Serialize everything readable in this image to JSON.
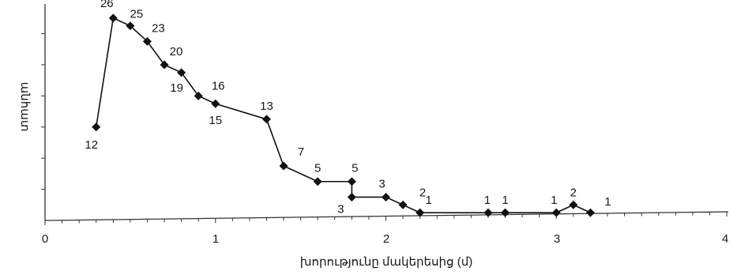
{
  "chart_data": {
    "type": "line",
    "title": "",
    "xlabel": "խորությունը մակերեսից (մ)",
    "ylabel": "անհատ",
    "xlim": [
      0,
      4
    ],
    "ylim": [
      0,
      27
    ],
    "x_ticks": [
      "0",
      "1",
      "2",
      "3",
      "4"
    ],
    "grid": false,
    "legend": "none",
    "colors": {
      "line": "#111111",
      "marker": "#111111",
      "axis": "#333333"
    },
    "marker": "diamond",
    "series": [
      {
        "points": [
          {
            "x": 0.3,
            "y": 12,
            "label": "12"
          },
          {
            "x": 0.4,
            "y": 26,
            "label": "26"
          },
          {
            "x": 0.5,
            "y": 25,
            "label": "25"
          },
          {
            "x": 0.6,
            "y": 23,
            "label": "23"
          },
          {
            "x": 0.7,
            "y": 20,
            "label": "20"
          },
          {
            "x": 0.8,
            "y": 19,
            "label": "19"
          },
          {
            "x": 0.9,
            "y": 16,
            "label": "16"
          },
          {
            "x": 1.0,
            "y": 15,
            "label": "15"
          },
          {
            "x": 1.3,
            "y": 13,
            "label": "13"
          },
          {
            "x": 1.4,
            "y": 7,
            "label": "7"
          },
          {
            "x": 1.6,
            "y": 5,
            "label": "5"
          },
          {
            "x": 1.8,
            "y": 5,
            "label": "5"
          },
          {
            "x": 1.8,
            "y": 3,
            "label": "3"
          },
          {
            "x": 2.0,
            "y": 3,
            "label": "3"
          },
          {
            "x": 2.1,
            "y": 2,
            "label": "2"
          },
          {
            "x": 2.2,
            "y": 1,
            "label": "1"
          },
          {
            "x": 2.6,
            "y": 1,
            "label": "1"
          },
          {
            "x": 2.7,
            "y": 1,
            "label": "1"
          },
          {
            "x": 3.0,
            "y": 1,
            "label": "1"
          },
          {
            "x": 3.1,
            "y": 2,
            "label": "2"
          },
          {
            "x": 3.2,
            "y": 1,
            "label": "1"
          }
        ]
      }
    ]
  }
}
